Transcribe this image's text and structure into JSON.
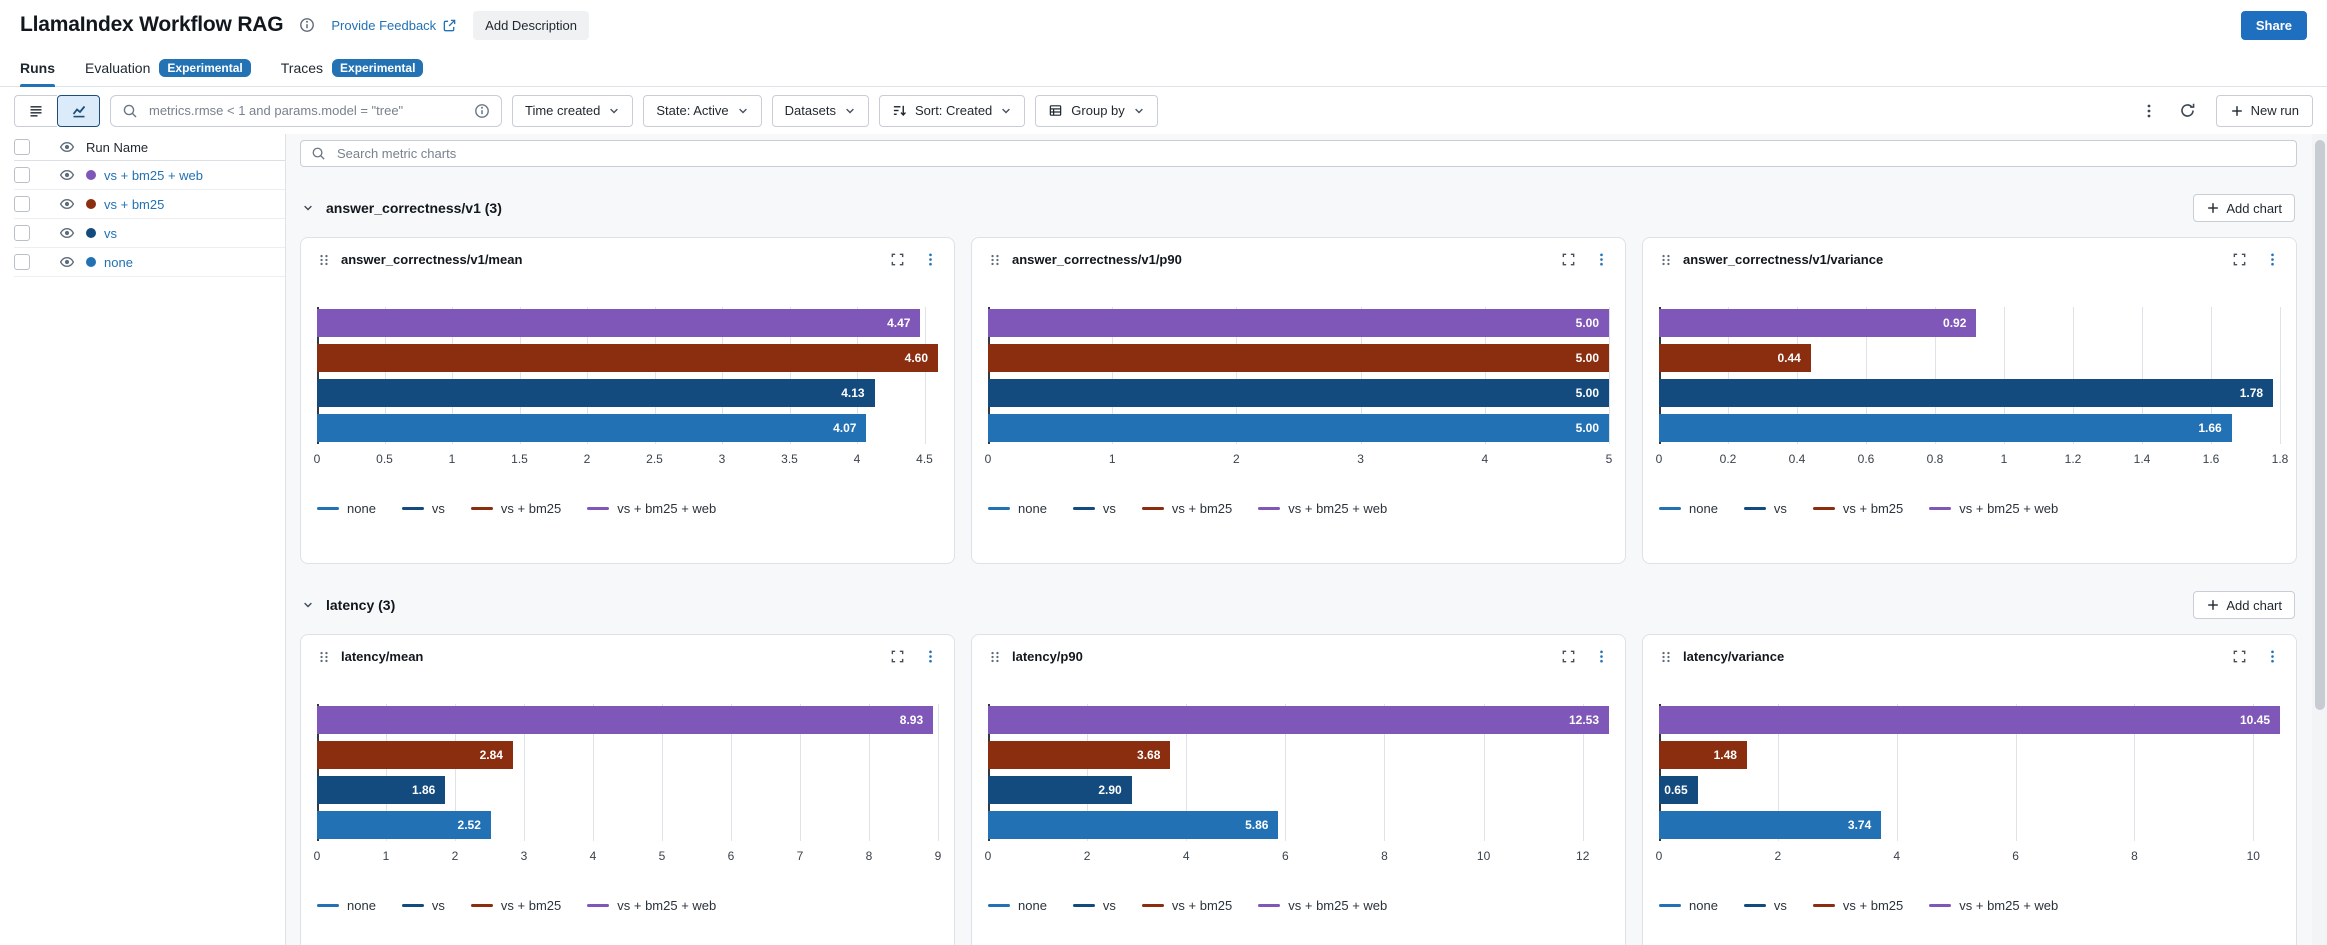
{
  "app": {
    "title": "LlamaIndex Workflow RAG",
    "feedback_link": "Provide Feedback",
    "add_description": "Add Description",
    "share": "Share"
  },
  "tabs": [
    {
      "label": "Runs",
      "active": true
    },
    {
      "label": "Evaluation",
      "badge": "Experimental"
    },
    {
      "label": "Traces",
      "badge": "Experimental"
    }
  ],
  "toolbar": {
    "search_placeholder": "metrics.rmse < 1 and params.model = \"tree\"",
    "filters": [
      {
        "label": "Time created"
      },
      {
        "label": "State: Active"
      },
      {
        "label": "Datasets"
      },
      {
        "label": "Sort: Created",
        "icon": "sort"
      },
      {
        "label": "Group by",
        "icon": "grid"
      }
    ],
    "new_run": "New run"
  },
  "runs": [
    {
      "name": "vs + bm25 + web",
      "color": "#7E57B8"
    },
    {
      "name": "vs + bm25",
      "color": "#8A2E0F"
    },
    {
      "name": "vs",
      "color": "#134B7E"
    },
    {
      "name": "none",
      "color": "#2271B5"
    }
  ],
  "runs_table": {
    "column": "Run Name"
  },
  "charts_panel": {
    "search_placeholder": "Search metric charts",
    "add_chart": "Add chart",
    "sections": [
      {
        "title": "answer_correctness/v1 (3)",
        "charts": [
          0,
          1,
          2
        ]
      },
      {
        "title": "latency (3)",
        "charts": [
          3,
          4,
          5
        ]
      }
    ]
  },
  "chart_data": [
    {
      "type": "bar",
      "title": "answer_correctness/v1/mean",
      "orientation": "horizontal",
      "xmax": 4.6,
      "ticks": [
        "0",
        "0.5",
        "1",
        "1.5",
        "2",
        "2.5",
        "3",
        "3.5",
        "4",
        "4.5"
      ],
      "bars": [
        {
          "run": "vs + bm25 + web",
          "value": 4.47,
          "label": "4.47"
        },
        {
          "run": "vs + bm25",
          "value": 4.6,
          "label": "4.60"
        },
        {
          "run": "vs",
          "value": 4.13,
          "label": "4.13"
        },
        {
          "run": "none",
          "value": 4.07,
          "label": "4.07"
        }
      ],
      "legend": [
        "none",
        "vs",
        "vs + bm25",
        "vs + bm25 + web"
      ]
    },
    {
      "type": "bar",
      "title": "answer_correctness/v1/p90",
      "orientation": "horizontal",
      "xmax": 5,
      "ticks": [
        "0",
        "1",
        "2",
        "3",
        "4",
        "5"
      ],
      "bars": [
        {
          "run": "vs + bm25 + web",
          "value": 5.0,
          "label": "5.00"
        },
        {
          "run": "vs + bm25",
          "value": 5.0,
          "label": "5.00"
        },
        {
          "run": "vs",
          "value": 5.0,
          "label": "5.00"
        },
        {
          "run": "none",
          "value": 5.0,
          "label": "5.00"
        }
      ],
      "legend": [
        "none",
        "vs",
        "vs + bm25",
        "vs + bm25 + web"
      ]
    },
    {
      "type": "bar",
      "title": "answer_correctness/v1/variance",
      "orientation": "horizontal",
      "xmax": 1.8,
      "ticks": [
        "0",
        "0.2",
        "0.4",
        "0.6",
        "0.8",
        "1",
        "1.2",
        "1.4",
        "1.6",
        "1.8"
      ],
      "bars": [
        {
          "run": "vs + bm25 + web",
          "value": 0.92,
          "label": "0.92"
        },
        {
          "run": "vs + bm25",
          "value": 0.44,
          "label": "0.44"
        },
        {
          "run": "vs",
          "value": 1.78,
          "label": "1.78"
        },
        {
          "run": "none",
          "value": 1.66,
          "label": "1.66"
        }
      ],
      "legend": [
        "none",
        "vs",
        "vs + bm25",
        "vs + bm25 + web"
      ]
    },
    {
      "type": "bar",
      "title": "latency/mean",
      "orientation": "horizontal",
      "xmax": 9,
      "ticks": [
        "0",
        "1",
        "2",
        "3",
        "4",
        "5",
        "6",
        "7",
        "8",
        "9"
      ],
      "bars": [
        {
          "run": "vs + bm25 + web",
          "value": 8.93,
          "label": "8.93"
        },
        {
          "run": "vs + bm25",
          "value": 2.84,
          "label": "2.84"
        },
        {
          "run": "vs",
          "value": 1.86,
          "label": "1.86"
        },
        {
          "run": "none",
          "value": 2.52,
          "label": "2.52"
        }
      ],
      "legend": [
        "none",
        "vs",
        "vs + bm25",
        "vs + bm25 + web"
      ]
    },
    {
      "type": "bar",
      "title": "latency/p90",
      "orientation": "horizontal",
      "xmax": 12.53,
      "ticks": [
        "0",
        "2",
        "4",
        "6",
        "8",
        "10",
        "12"
      ],
      "bars": [
        {
          "run": "vs + bm25 + web",
          "value": 12.53,
          "label": "12.53"
        },
        {
          "run": "vs + bm25",
          "value": 3.68,
          "label": "3.68"
        },
        {
          "run": "vs",
          "value": 2.9,
          "label": "2.90"
        },
        {
          "run": "none",
          "value": 5.86,
          "label": "5.86"
        }
      ],
      "legend": [
        "none",
        "vs",
        "vs + bm25",
        "vs + bm25 + web"
      ]
    },
    {
      "type": "bar",
      "title": "latency/variance",
      "orientation": "horizontal",
      "xmax": 10.45,
      "ticks": [
        "0",
        "2",
        "4",
        "6",
        "8",
        "10"
      ],
      "bars": [
        {
          "run": "vs + bm25 + web",
          "value": 10.45,
          "label": "10.45"
        },
        {
          "run": "vs + bm25",
          "value": 1.48,
          "label": "1.48"
        },
        {
          "run": "vs",
          "value": 0.65,
          "label": "0.65"
        },
        {
          "run": "none",
          "value": 3.74,
          "label": "3.74"
        }
      ],
      "legend": [
        "none",
        "vs",
        "vs + bm25",
        "vs + bm25 + web"
      ]
    }
  ]
}
